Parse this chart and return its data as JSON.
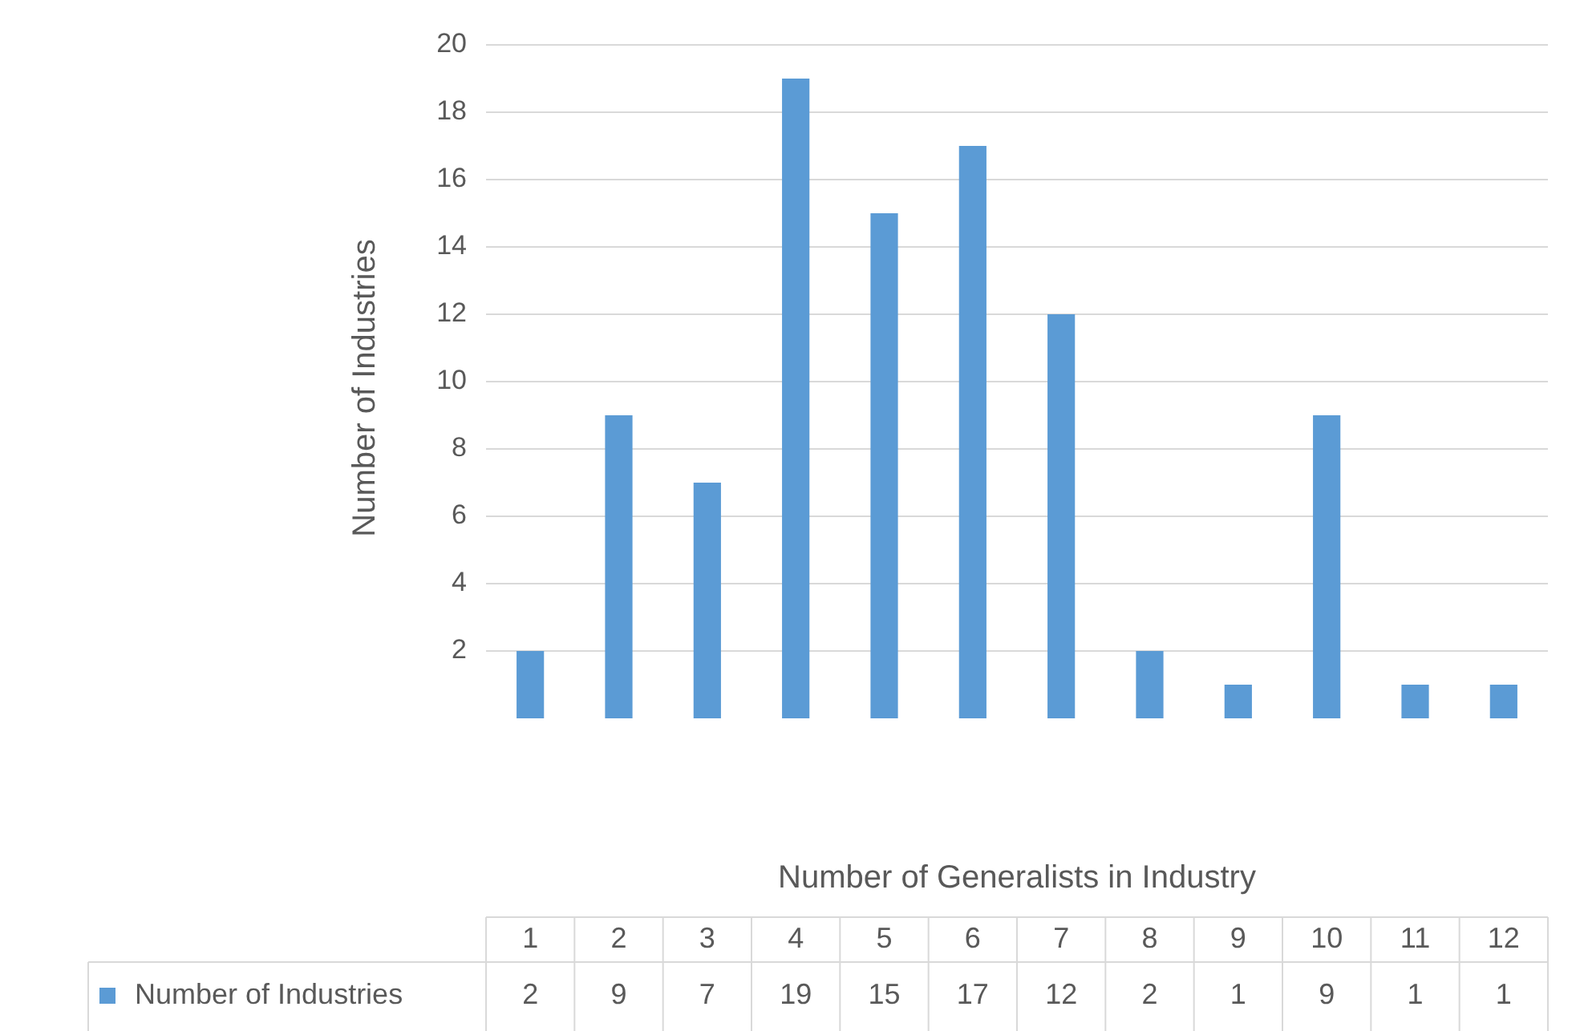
{
  "chart_data": {
    "type": "bar",
    "xlabel": "Number of Generalists in Industry",
    "ylabel": "Number of Industries",
    "categories": [
      "1",
      "2",
      "3",
      "4",
      "5",
      "6",
      "7",
      "8",
      "9",
      "10",
      "11",
      "12"
    ],
    "series": [
      {
        "name": "Number of Industries",
        "color": "#5b9bd5",
        "values": [
          2,
          9,
          7,
          19,
          15,
          17,
          12,
          2,
          1,
          9,
          1,
          1
        ]
      }
    ],
    "ylim": [
      0,
      20
    ],
    "yticks": [
      2,
      4,
      6,
      8,
      10,
      12,
      14,
      16,
      18,
      20
    ],
    "grid": "y",
    "data_labels": true,
    "legend": "bottom"
  }
}
